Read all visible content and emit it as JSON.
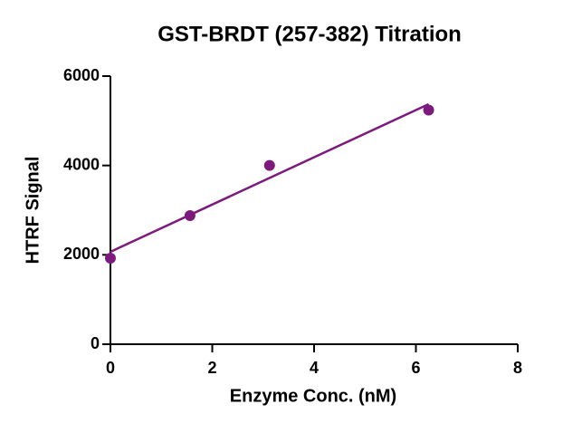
{
  "chart_data": {
    "type": "scatter",
    "title": "GST-BRDT (257-382) Titration",
    "x_label": "Enzyme Conc. (nM)",
    "y_label": "HTRF Signal",
    "series": [
      {
        "x": [
          0,
          1.5625,
          3.125,
          6.25
        ],
        "values": [
          1926,
          2878,
          4000,
          5240
        ],
        "color": "#7d1a7d"
      }
    ],
    "fit_line": {
      "x": [
        0,
        6.25
      ],
      "values": [
        2068,
        5372
      ],
      "color": "#7d1a7d"
    },
    "xlim": [
      0,
      8
    ],
    "xticks": [
      0,
      2,
      4,
      6,
      8
    ],
    "ylim": [
      0,
      6000
    ],
    "yticks": [
      0,
      2000,
      4000,
      6000
    ]
  }
}
